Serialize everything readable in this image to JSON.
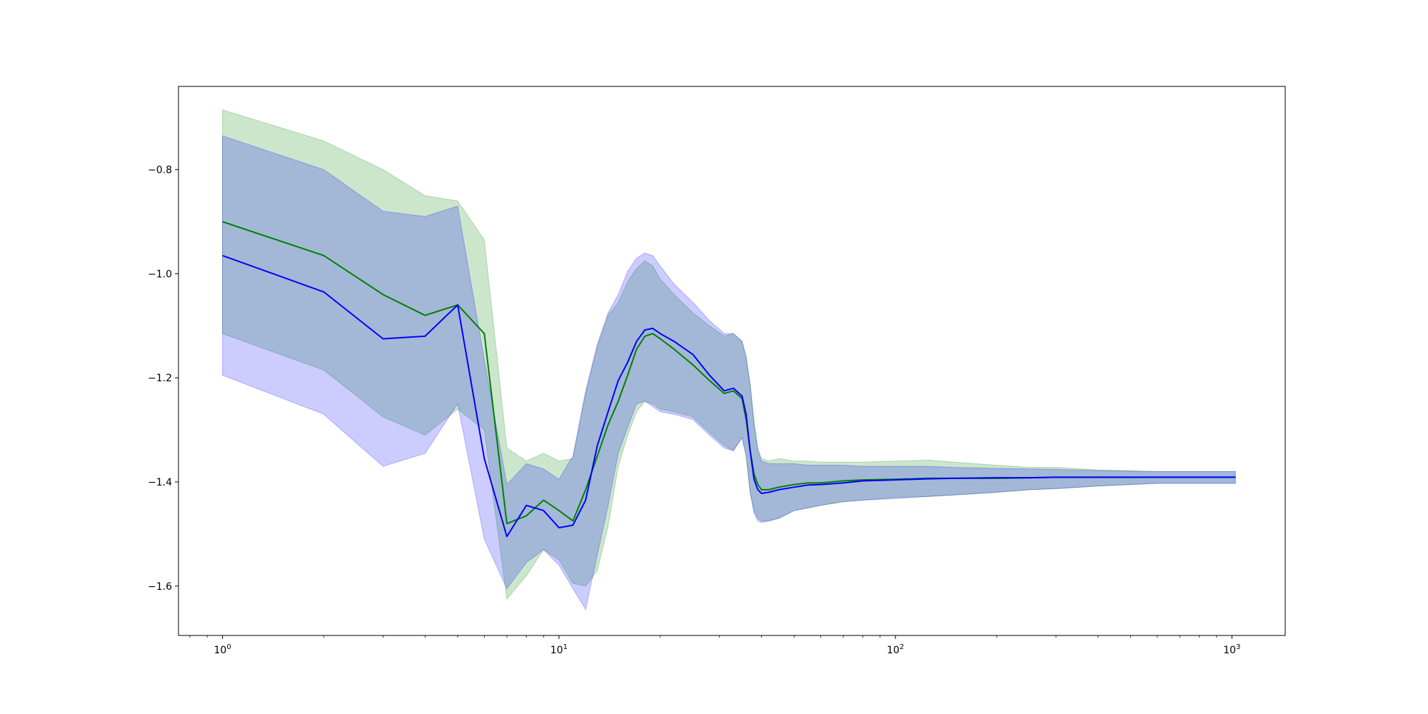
{
  "chart_data": {
    "type": "line",
    "title": "",
    "xlabel": "",
    "ylabel": "",
    "x_scale": "log",
    "xlim": [
      0.74,
      1440
    ],
    "ylim": [
      -1.695,
      -0.64
    ],
    "grid": false,
    "legend": "none",
    "xticks": [
      {
        "value": 1,
        "base": "10",
        "exp": "0"
      },
      {
        "value": 10,
        "base": "10",
        "exp": "1"
      },
      {
        "value": 100,
        "base": "10",
        "exp": "2"
      },
      {
        "value": 1000,
        "base": "10",
        "exp": "3"
      }
    ],
    "yticks": [
      {
        "value": -0.8,
        "label": "−0.8"
      },
      {
        "value": -1.0,
        "label": "−1.0"
      },
      {
        "value": -1.2,
        "label": "−1.2"
      },
      {
        "value": -1.4,
        "label": "−1.4"
      },
      {
        "value": -1.6,
        "label": "−1.6"
      }
    ],
    "series": [
      {
        "color": "#008000",
        "band_color": "#008000",
        "x": [
          1,
          2,
          3,
          4,
          5,
          6,
          7,
          8,
          9,
          10,
          11,
          12,
          13,
          14,
          15,
          16,
          17,
          18,
          19,
          20,
          22,
          25,
          28,
          31,
          33,
          35,
          36,
          37,
          38,
          39,
          40,
          42,
          45,
          50,
          55,
          60,
          70,
          80,
          100,
          125,
          150,
          200,
          250,
          300,
          400,
          600,
          1024
        ],
        "mean": [
          -0.9,
          -0.965,
          -1.04,
          -1.08,
          -1.06,
          -1.115,
          -1.48,
          -1.465,
          -1.435,
          -1.455,
          -1.475,
          -1.415,
          -1.35,
          -1.29,
          -1.245,
          -1.195,
          -1.145,
          -1.12,
          -1.115,
          -1.125,
          -1.145,
          -1.175,
          -1.205,
          -1.23,
          -1.225,
          -1.24,
          -1.28,
          -1.34,
          -1.385,
          -1.405,
          -1.415,
          -1.415,
          -1.41,
          -1.405,
          -1.402,
          -1.402,
          -1.398,
          -1.396,
          -1.395,
          -1.393,
          -1.393,
          -1.393,
          -1.392,
          -1.391,
          -1.391,
          -1.391,
          -1.391
        ],
        "upper": [
          -0.685,
          -0.745,
          -0.8,
          -0.85,
          -0.86,
          -0.935,
          -1.335,
          -1.36,
          -1.345,
          -1.36,
          -1.355,
          -1.23,
          -1.14,
          -1.08,
          -1.055,
          -1.015,
          -0.99,
          -0.975,
          -0.985,
          -1.01,
          -1.04,
          -1.075,
          -1.1,
          -1.12,
          -1.115,
          -1.13,
          -1.16,
          -1.21,
          -1.28,
          -1.335,
          -1.355,
          -1.36,
          -1.355,
          -1.36,
          -1.36,
          -1.362,
          -1.362,
          -1.362,
          -1.36,
          -1.358,
          -1.362,
          -1.368,
          -1.372,
          -1.372,
          -1.377,
          -1.38,
          -1.38
        ],
        "lower": [
          -1.115,
          -1.185,
          -1.275,
          -1.31,
          -1.26,
          -1.3,
          -1.625,
          -1.58,
          -1.53,
          -1.55,
          -1.595,
          -1.6,
          -1.57,
          -1.485,
          -1.37,
          -1.31,
          -1.265,
          -1.245,
          -1.25,
          -1.26,
          -1.265,
          -1.275,
          -1.305,
          -1.33,
          -1.34,
          -1.315,
          -1.35,
          -1.42,
          -1.455,
          -1.47,
          -1.475,
          -1.475,
          -1.47,
          -1.455,
          -1.45,
          -1.445,
          -1.438,
          -1.435,
          -1.43,
          -1.428,
          -1.425,
          -1.42,
          -1.415,
          -1.413,
          -1.408,
          -1.402,
          -1.402
        ]
      },
      {
        "color": "#0000ff",
        "band_color": "#0000ff",
        "x": [
          1,
          2,
          3,
          4,
          5,
          6,
          7,
          8,
          9,
          10,
          11,
          12,
          13,
          14,
          15,
          16,
          17,
          18,
          19,
          20,
          22,
          25,
          28,
          31,
          33,
          35,
          36,
          37,
          38,
          39,
          40,
          42,
          45,
          50,
          55,
          60,
          70,
          80,
          100,
          125,
          150,
          200,
          250,
          300,
          400,
          600,
          1024
        ],
        "mean": [
          -0.965,
          -1.035,
          -1.125,
          -1.12,
          -1.06,
          -1.355,
          -1.505,
          -1.445,
          -1.455,
          -1.488,
          -1.483,
          -1.435,
          -1.33,
          -1.265,
          -1.205,
          -1.17,
          -1.13,
          -1.108,
          -1.105,
          -1.115,
          -1.13,
          -1.155,
          -1.195,
          -1.225,
          -1.22,
          -1.235,
          -1.27,
          -1.34,
          -1.395,
          -1.415,
          -1.422,
          -1.42,
          -1.415,
          -1.41,
          -1.406,
          -1.405,
          -1.402,
          -1.398,
          -1.396,
          -1.394,
          -1.393,
          -1.392,
          -1.392,
          -1.391,
          -1.391,
          -1.391,
          -1.391
        ],
        "upper": [
          -0.735,
          -0.8,
          -0.88,
          -0.89,
          -0.87,
          -1.165,
          -1.405,
          -1.365,
          -1.375,
          -1.395,
          -1.35,
          -1.225,
          -1.135,
          -1.075,
          -1.04,
          -0.995,
          -0.97,
          -0.96,
          -0.965,
          -0.985,
          -1.02,
          -1.055,
          -1.09,
          -1.115,
          -1.115,
          -1.13,
          -1.16,
          -1.215,
          -1.29,
          -1.34,
          -1.36,
          -1.365,
          -1.365,
          -1.365,
          -1.368,
          -1.368,
          -1.368,
          -1.37,
          -1.37,
          -1.37,
          -1.372,
          -1.374,
          -1.375,
          -1.376,
          -1.378,
          -1.38,
          -1.38
        ],
        "lower": [
          -1.195,
          -1.27,
          -1.37,
          -1.345,
          -1.25,
          -1.51,
          -1.605,
          -1.555,
          -1.53,
          -1.56,
          -1.605,
          -1.645,
          -1.54,
          -1.445,
          -1.345,
          -1.295,
          -1.25,
          -1.245,
          -1.255,
          -1.265,
          -1.27,
          -1.28,
          -1.31,
          -1.335,
          -1.34,
          -1.315,
          -1.35,
          -1.42,
          -1.46,
          -1.475,
          -1.478,
          -1.475,
          -1.47,
          -1.455,
          -1.45,
          -1.445,
          -1.438,
          -1.435,
          -1.432,
          -1.428,
          -1.425,
          -1.42,
          -1.415,
          -1.413,
          -1.408,
          -1.403,
          -1.403
        ]
      }
    ]
  }
}
